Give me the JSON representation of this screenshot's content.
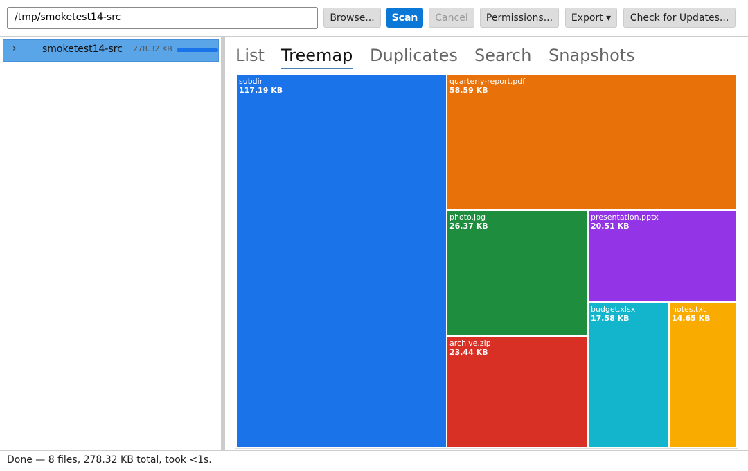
{
  "toolbar": {
    "path": "/tmp/smoketest14-src",
    "buttons": [
      "Browse...",
      "Scan",
      "Cancel",
      "Permissions...",
      "Export ▾",
      "Check for Updates..."
    ]
  },
  "tree": {
    "name": "smoketest14-src",
    "size": "278.32 KB"
  },
  "tabs": [
    "List",
    "Treemap",
    "Duplicates",
    "Search",
    "Snapshots"
  ],
  "treemap": [
    {
      "name": "subdir",
      "size": "117.19 KB"
    },
    {
      "name": "quarterly-report.pdf",
      "size": "58.59 KB"
    },
    {
      "name": "photo.jpg",
      "size": "26.37 KB"
    },
    {
      "name": "archive.zip",
      "size": "23.44 KB"
    },
    {
      "name": "presentation.pptx",
      "size": "20.51 KB"
    },
    {
      "name": "budget.xlsx",
      "size": "17.58 KB"
    },
    {
      "name": "notes.txt",
      "size": "14.65 KB"
    }
  ],
  "status": "Done — 8 files, 278.32 KB total, took <1s."
}
